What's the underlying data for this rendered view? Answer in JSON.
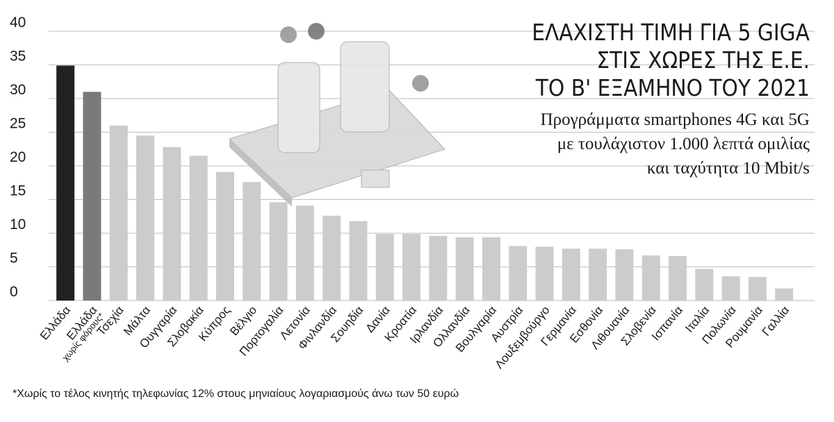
{
  "chart_data": {
    "type": "bar",
    "title": [
      "ΕΛΑΧΙΣΤΗ ΤΙΜΗ ΓΙΑ 5 GIGA",
      "ΣΤΙΣ ΧΩΡΕΣ ΤΗΣ Ε.Ε.",
      "ΤΟ Β' ΕΞΑΜΗΝΟ ΤΟΥ 2021"
    ],
    "subtitle": [
      "Προγράμματα smartphones 4G και 5G",
      "με τουλάχιστον 1.000 λεπτά ομιλίας",
      "και ταχύτητα 10 Mbit/s"
    ],
    "footnote": "*Χωρίς το τέλος κινητής τηλεφωνίας 12% στους μηνιαίους λογαριασμούς άνω των 50 ευρώ",
    "categories": [
      "Ελλάδα",
      "Ελλάδα\nχωρίς φόρους*",
      "Τσεχία",
      "Μάλτα",
      "Ουγγαρία",
      "Σλοβακία",
      "Κύπρος",
      "Βέλγιο",
      "Πορτογαλία",
      "Λετονία",
      "Φινλανδία",
      "Σουηδία",
      "Δανία",
      "Κροατία",
      "Ιρλανδία",
      "Ολλανδία",
      "Βουλγαρία",
      "Αυστρία",
      "Λουξεμβούργο",
      "Γερμανία",
      "Εσθονία",
      "Λιθουανία",
      "Σλοβενία",
      "Ισπανία",
      "Ιταλία",
      "Πολωνία",
      "Ρουμανία",
      "Γαλλία"
    ],
    "values": [
      34.9,
      31,
      26,
      24.5,
      22.8,
      21.5,
      19.1,
      17.6,
      14.6,
      14.1,
      12.6,
      11.8,
      9.9,
      9.9,
      9.6,
      9.4,
      9.4,
      8.1,
      8.0,
      7.7,
      7.7,
      7.6,
      6.7,
      6.6,
      4.7,
      3.6,
      3.5,
      1.8
    ],
    "colors": [
      "#222222",
      "#7a7a7a",
      "#cccccc",
      "#cccccc",
      "#cccccc",
      "#cccccc",
      "#cccccc",
      "#cccccc",
      "#cccccc",
      "#cccccc",
      "#cccccc",
      "#cccccc",
      "#cccccc",
      "#cccccc",
      "#cccccc",
      "#cccccc",
      "#cccccc",
      "#cccccc",
      "#cccccc",
      "#cccccc",
      "#cccccc",
      "#cccccc",
      "#cccccc",
      "#cccccc",
      "#cccccc",
      "#cccccc",
      "#cccccc",
      "#cccccc"
    ],
    "ylim": [
      0,
      40
    ],
    "yticks": [
      0,
      5,
      10,
      15,
      20,
      25,
      30,
      35,
      40
    ],
    "grid": true
  }
}
